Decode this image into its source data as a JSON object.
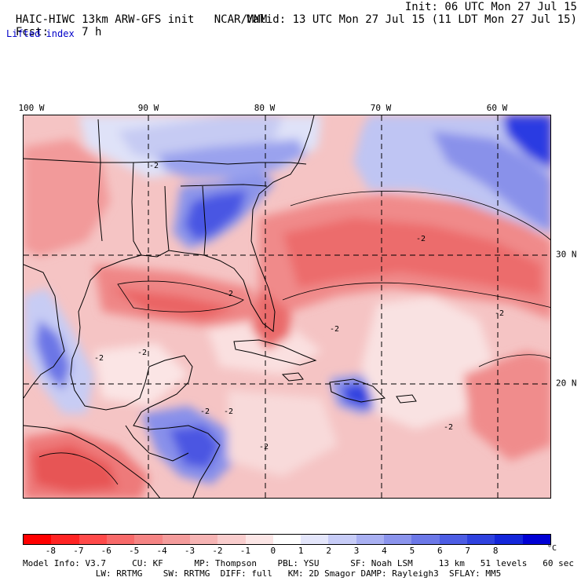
{
  "header": {
    "title": "HAIC-HIWC 13km ARW-GFS init",
    "org": "NCAR/MMM",
    "init": "Init: 06 UTC Mon 27 Jul 15",
    "fcst_label": "Fcst:",
    "fcst_value": "7 h",
    "valid": "Valid: 13 UTC Mon 27 Jul 15 (11 LDT Mon 27 Jul 15)",
    "field": "Lifted index"
  },
  "map": {
    "lon_labels": [
      "100 W",
      "90 W",
      "80 W",
      "70 W",
      "60 W"
    ],
    "lat_labels": [
      "30 N",
      "20 N"
    ],
    "contour_labels": [
      "-2",
      "-2",
      "-2",
      "-2",
      "-2",
      "-2",
      "-2",
      "-2",
      "-2",
      "-2",
      "-2"
    ],
    "colors": {
      "background": "#f6cccc",
      "weak_negative": "#f29a9a",
      "negative": "#ee7070",
      "strong_negative": "#e84848",
      "near_zero": "#fbeeee",
      "positive": "#c8cdf6",
      "mid_positive": "#8f98ee",
      "strong_positive": "#2a36e6"
    }
  },
  "colorbar": {
    "labels": [
      "-8",
      "-7",
      "-6",
      "-5",
      "-4",
      "-3",
      "-2",
      "-1",
      "0",
      "1",
      "2",
      "3",
      "4",
      "5",
      "6",
      "7",
      "8"
    ],
    "unit": "°C",
    "colors": [
      "#ff0000",
      "#ff2424",
      "#ff4a4a",
      "#f86a6a",
      "#f58484",
      "#f49c9c",
      "#f6b4b4",
      "#f9cdcd",
      "#fce6e6",
      "#ffffff",
      "#e4e6fb",
      "#c7ccf7",
      "#a9b0f2",
      "#8b94ed",
      "#6c78e8",
      "#4d5de4",
      "#2f42df",
      "#1426da",
      "#0000d4"
    ]
  },
  "footer": {
    "line1": "Model Info: V3.7     CU: KF      MP: Thompson    PBL: YSU      SF: Noah LSM     13 km   51 levels   60 sec",
    "line2": "              LW: RRTMG    SW: RRTMG  DIFF: full   KM: 2D Smagor DAMP: Rayleigh3  SFLAY: MM5"
  }
}
